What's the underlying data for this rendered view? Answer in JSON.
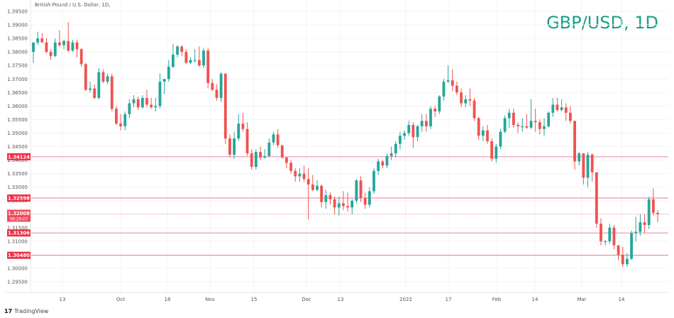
{
  "header": {
    "symbol_description": "British Pound / U.S. Dollar, 1D,",
    "overlay_title": "GBP/USD, 1D"
  },
  "branding": {
    "logo_mark": "17",
    "logo_text": "TradingView"
  },
  "colors": {
    "up": "#26a69a",
    "down": "#ef5350",
    "hline": "#f48fb1",
    "label_bg": "#ef2f45",
    "title": "#16a085",
    "grid": "#f3f3f3"
  },
  "chart_data": {
    "type": "candlestick",
    "title": "GBP/USD, 1D",
    "subtitle": "British Pound / U.S. Dollar, 1D,",
    "ylabel": "Price",
    "ylim": [
      1.293,
      1.3975
    ],
    "y_ticks": [
      "1.39500",
      "1.39000",
      "1.38500",
      "1.38000",
      "1.37500",
      "1.37000",
      "1.36500",
      "1.36000",
      "1.35500",
      "1.35000",
      "1.34500",
      "1.34000",
      "1.33500",
      "1.33000",
      "1.32500",
      "1.32000",
      "1.31500",
      "1.31000",
      "1.30500",
      "1.30000",
      "1.29500"
    ],
    "x_ticks": [
      {
        "label": "13",
        "x": 88
      },
      {
        "label": "Oct",
        "x": 170
      },
      {
        "label": "18",
        "x": 236
      },
      {
        "label": "Nov",
        "x": 296
      },
      {
        "label": "15",
        "x": 358
      },
      {
        "label": "Dec",
        "x": 432
      },
      {
        "label": "13",
        "x": 480
      },
      {
        "label": "2022",
        "x": 572
      },
      {
        "label": "17",
        "x": 632
      },
      {
        "label": "Feb",
        "x": 700
      },
      {
        "label": "14",
        "x": 754
      },
      {
        "label": "Mar",
        "x": 820
      },
      {
        "label": "14",
        "x": 876
      }
    ],
    "horizontal_lines": [
      {
        "price": 1.34124,
        "label": "1.34124"
      },
      {
        "price": 1.32598,
        "label": "1.32598"
      },
      {
        "price": 1.31306,
        "label": "1.31306"
      },
      {
        "price": 1.3048,
        "label": "1.30480"
      }
    ],
    "last_price": {
      "price": 1.32008,
      "label": "1.32008",
      "countdown": "09:29:07"
    },
    "candles": [
      [
        1.38,
        1.3835,
        1.376,
        1.3835
      ],
      [
        1.3835,
        1.3875,
        1.3825,
        1.385
      ],
      [
        1.385,
        1.387,
        1.3835,
        1.3835
      ],
      [
        1.3835,
        1.385,
        1.3795,
        1.38
      ],
      [
        1.38,
        1.381,
        1.377,
        1.3785
      ],
      [
        1.3785,
        1.385,
        1.378,
        1.3835
      ],
      [
        1.3835,
        1.388,
        1.382,
        1.3825
      ],
      [
        1.3825,
        1.3845,
        1.381,
        1.384
      ],
      [
        1.384,
        1.391,
        1.38,
        1.3805
      ],
      [
        1.3805,
        1.3845,
        1.38,
        1.3835
      ],
      [
        1.3835,
        1.3845,
        1.378,
        1.381
      ],
      [
        1.381,
        1.3815,
        1.3745,
        1.3755
      ],
      [
        1.3755,
        1.376,
        1.3655,
        1.366
      ],
      [
        1.366,
        1.369,
        1.365,
        1.3665
      ],
      [
        1.3665,
        1.368,
        1.3625,
        1.363
      ],
      [
        1.363,
        1.374,
        1.3625,
        1.3725
      ],
      [
        1.3725,
        1.3735,
        1.3685,
        1.369
      ],
      [
        1.369,
        1.372,
        1.368,
        1.371
      ],
      [
        1.371,
        1.372,
        1.358,
        1.359
      ],
      [
        1.359,
        1.36,
        1.353,
        1.3535
      ],
      [
        1.3535,
        1.357,
        1.351,
        1.3525
      ],
      [
        1.3525,
        1.358,
        1.351,
        1.357
      ],
      [
        1.357,
        1.3625,
        1.3555,
        1.361
      ],
      [
        1.361,
        1.364,
        1.3595,
        1.3625
      ],
      [
        1.3625,
        1.3635,
        1.3585,
        1.3595
      ],
      [
        1.3595,
        1.364,
        1.359,
        1.363
      ],
      [
        1.363,
        1.366,
        1.3595,
        1.3605
      ],
      [
        1.3605,
        1.363,
        1.359,
        1.3595
      ],
      [
        1.3595,
        1.363,
        1.358,
        1.36
      ],
      [
        1.36,
        1.372,
        1.359,
        1.369
      ],
      [
        1.369,
        1.37,
        1.3645,
        1.37
      ],
      [
        1.37,
        1.377,
        1.369,
        1.3745
      ],
      [
        1.3745,
        1.383,
        1.374,
        1.379
      ],
      [
        1.379,
        1.3825,
        1.378,
        1.382
      ],
      [
        1.382,
        1.3825,
        1.3785,
        1.38
      ],
      [
        1.38,
        1.381,
        1.3755,
        1.376
      ],
      [
        1.376,
        1.378,
        1.3755,
        1.377
      ],
      [
        1.377,
        1.381,
        1.376,
        1.377
      ],
      [
        1.377,
        1.382,
        1.3745,
        1.375
      ],
      [
        1.375,
        1.3815,
        1.374,
        1.3805
      ],
      [
        1.3805,
        1.3815,
        1.3665,
        1.3685
      ],
      [
        1.3685,
        1.37,
        1.3655,
        1.366
      ],
      [
        1.366,
        1.368,
        1.362,
        1.363
      ],
      [
        1.363,
        1.3725,
        1.3615,
        1.372
      ],
      [
        1.372,
        1.372,
        1.346,
        1.348
      ],
      [
        1.348,
        1.3495,
        1.341,
        1.342
      ],
      [
        1.342,
        1.3505,
        1.3405,
        1.348
      ],
      [
        1.348,
        1.357,
        1.347,
        1.3535
      ],
      [
        1.3535,
        1.3575,
        1.3505,
        1.3515
      ],
      [
        1.3515,
        1.354,
        1.3415,
        1.3425
      ],
      [
        1.3425,
        1.344,
        1.3365,
        1.3375
      ],
      [
        1.3375,
        1.344,
        1.3365,
        1.343
      ],
      [
        1.343,
        1.345,
        1.34,
        1.341
      ],
      [
        1.341,
        1.344,
        1.3405,
        1.3415
      ],
      [
        1.3415,
        1.348,
        1.341,
        1.3465
      ],
      [
        1.3465,
        1.3505,
        1.3455,
        1.3495
      ],
      [
        1.3495,
        1.3515,
        1.3445,
        1.3455
      ],
      [
        1.3455,
        1.3455,
        1.3405,
        1.341
      ],
      [
        1.341,
        1.34,
        1.337,
        1.339
      ],
      [
        1.339,
        1.34,
        1.335,
        1.336
      ],
      [
        1.336,
        1.337,
        1.332,
        1.334
      ],
      [
        1.334,
        1.337,
        1.332,
        1.335
      ],
      [
        1.335,
        1.338,
        1.332,
        1.333
      ],
      [
        1.333,
        1.337,
        1.318,
        1.331
      ],
      [
        1.331,
        1.3345,
        1.3285,
        1.329
      ],
      [
        1.329,
        1.3325,
        1.3285,
        1.3305
      ],
      [
        1.3305,
        1.331,
        1.3225,
        1.3245
      ],
      [
        1.3245,
        1.329,
        1.322,
        1.327
      ],
      [
        1.327,
        1.328,
        1.3235,
        1.3255
      ],
      [
        1.3255,
        1.3265,
        1.32,
        1.3225
      ],
      [
        1.3225,
        1.3265,
        1.3195,
        1.324
      ],
      [
        1.324,
        1.3285,
        1.3215,
        1.323
      ],
      [
        1.323,
        1.328,
        1.321,
        1.3225
      ],
      [
        1.3225,
        1.3255,
        1.32,
        1.325
      ],
      [
        1.325,
        1.333,
        1.324,
        1.3325
      ],
      [
        1.3325,
        1.334,
        1.3245,
        1.326
      ],
      [
        1.326,
        1.328,
        1.322,
        1.3235
      ],
      [
        1.3235,
        1.33,
        1.3225,
        1.3285
      ],
      [
        1.3285,
        1.337,
        1.3275,
        1.336
      ],
      [
        1.336,
        1.3405,
        1.3345,
        1.3395
      ],
      [
        1.3395,
        1.34,
        1.337,
        1.338
      ],
      [
        1.338,
        1.3425,
        1.337,
        1.3415
      ],
      [
        1.3415,
        1.345,
        1.34,
        1.3425
      ],
      [
        1.3425,
        1.347,
        1.341,
        1.346
      ],
      [
        1.346,
        1.3505,
        1.344,
        1.349
      ],
      [
        1.349,
        1.351,
        1.3475,
        1.35
      ],
      [
        1.35,
        1.3545,
        1.349,
        1.353
      ],
      [
        1.353,
        1.354,
        1.3445,
        1.3485
      ],
      [
        1.3485,
        1.353,
        1.347,
        1.3525
      ],
      [
        1.3525,
        1.357,
        1.3505,
        1.3545
      ],
      [
        1.3545,
        1.357,
        1.3505,
        1.3525
      ],
      [
        1.3525,
        1.36,
        1.3515,
        1.359
      ],
      [
        1.359,
        1.36,
        1.356,
        1.358
      ],
      [
        1.358,
        1.364,
        1.357,
        1.3635
      ],
      [
        1.3635,
        1.37,
        1.362,
        1.369
      ],
      [
        1.369,
        1.375,
        1.3685,
        1.3695
      ],
      [
        1.3695,
        1.3735,
        1.3655,
        1.3675
      ],
      [
        1.3675,
        1.369,
        1.364,
        1.365
      ],
      [
        1.365,
        1.3665,
        1.3595,
        1.361
      ],
      [
        1.361,
        1.364,
        1.3595,
        1.3625
      ],
      [
        1.3625,
        1.3665,
        1.36,
        1.362
      ],
      [
        1.362,
        1.363,
        1.3545,
        1.3555
      ],
      [
        1.3555,
        1.356,
        1.3475,
        1.349
      ],
      [
        1.349,
        1.3525,
        1.347,
        1.351
      ],
      [
        1.351,
        1.353,
        1.346,
        1.347
      ],
      [
        1.347,
        1.348,
        1.3395,
        1.3405
      ],
      [
        1.3405,
        1.346,
        1.339,
        1.345
      ],
      [
        1.345,
        1.3515,
        1.344,
        1.3505
      ],
      [
        1.3505,
        1.3565,
        1.35,
        1.3555
      ],
      [
        1.3555,
        1.359,
        1.352,
        1.3575
      ],
      [
        1.3575,
        1.359,
        1.352,
        1.353
      ],
      [
        1.353,
        1.354,
        1.35,
        1.3525
      ],
      [
        1.3525,
        1.3555,
        1.3505,
        1.3525
      ],
      [
        1.3525,
        1.357,
        1.3515,
        1.352
      ],
      [
        1.352,
        1.3625,
        1.3515,
        1.3545
      ],
      [
        1.3545,
        1.359,
        1.3505,
        1.354
      ],
      [
        1.354,
        1.355,
        1.3495,
        1.3515
      ],
      [
        1.3515,
        1.3555,
        1.349,
        1.3525
      ],
      [
        1.3525,
        1.358,
        1.352,
        1.3575
      ],
      [
        1.3575,
        1.363,
        1.356,
        1.3605
      ],
      [
        1.3605,
        1.363,
        1.358,
        1.3585
      ],
      [
        1.3585,
        1.3625,
        1.358,
        1.3595
      ],
      [
        1.3595,
        1.361,
        1.3545,
        1.3575
      ],
      [
        1.3575,
        1.36,
        1.3535,
        1.3545
      ],
      [
        1.3545,
        1.3545,
        1.3365,
        1.3395
      ],
      [
        1.3395,
        1.343,
        1.338,
        1.3425
      ],
      [
        1.3425,
        1.3425,
        1.331,
        1.3335
      ],
      [
        1.3335,
        1.343,
        1.33,
        1.342
      ],
      [
        1.342,
        1.3425,
        1.332,
        1.3355
      ],
      [
        1.3355,
        1.3355,
        1.315,
        1.3165
      ],
      [
        1.3165,
        1.3185,
        1.3085,
        1.31
      ],
      [
        1.31,
        1.3105,
        1.3085,
        1.31
      ],
      [
        1.31,
        1.3165,
        1.309,
        1.315
      ],
      [
        1.315,
        1.316,
        1.307,
        1.3085
      ],
      [
        1.3085,
        1.3075,
        1.303,
        1.305
      ],
      [
        1.305,
        1.308,
        1.3005,
        1.3015
      ],
      [
        1.3015,
        1.3055,
        1.3005,
        1.3035
      ],
      [
        1.3035,
        1.314,
        1.303,
        1.313
      ],
      [
        1.313,
        1.319,
        1.31,
        1.3135
      ],
      [
        1.3135,
        1.32,
        1.312,
        1.317
      ],
      [
        1.317,
        1.32,
        1.313,
        1.316
      ],
      [
        1.316,
        1.3265,
        1.3145,
        1.3255
      ],
      [
        1.3255,
        1.3295,
        1.3195,
        1.3205
      ],
      [
        1.3205,
        1.3215,
        1.317,
        1.32
      ]
    ]
  }
}
